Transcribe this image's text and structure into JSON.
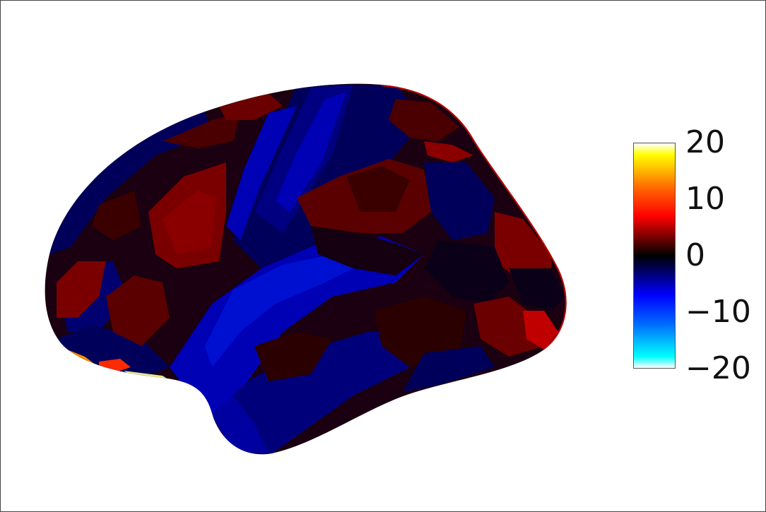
{
  "figure": {
    "background": "#ffffff",
    "frame_color": "#444444",
    "subject": "brain-surface-map"
  },
  "colorbar": {
    "colormap": "cold-hot",
    "min": -20,
    "max": 20,
    "stops": [
      {
        "value": 20,
        "color": "#ffffff"
      },
      {
        "value": 18,
        "color": "#ffff00"
      },
      {
        "value": 12,
        "color": "#ff6600"
      },
      {
        "value": 7,
        "color": "#ff0000"
      },
      {
        "value": 0,
        "color": "#000000"
      },
      {
        "value": -7,
        "color": "#0000ff"
      },
      {
        "value": -12,
        "color": "#0066ff"
      },
      {
        "value": -18,
        "color": "#00ffff"
      },
      {
        "value": -20,
        "color": "#ffffff"
      }
    ],
    "ticks": [
      {
        "value": 20,
        "label": "20"
      },
      {
        "value": 10,
        "label": "10"
      },
      {
        "value": 0,
        "label": "0"
      },
      {
        "value": -10,
        "label": "−10"
      },
      {
        "value": -20,
        "label": "−20"
      }
    ]
  },
  "surface_colors": {
    "dark_red": "#7a0000",
    "red": "#a00000",
    "deep_red": "#3a0000",
    "near_black": "#0a0018",
    "navy": "#00005a",
    "blue": "#0000b4",
    "bright_blue": "#0010d0",
    "hot": "#ff2a00",
    "orange": "#ff8a00",
    "pale_yellow": "#e8e890"
  }
}
